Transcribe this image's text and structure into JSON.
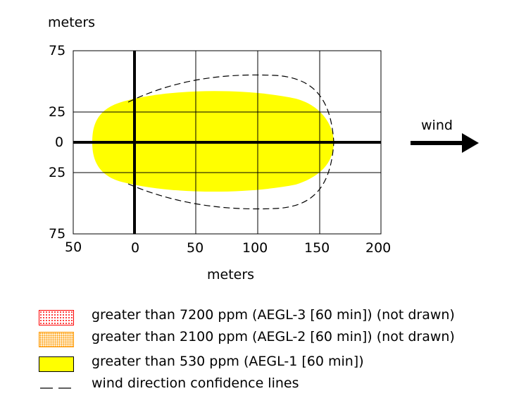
{
  "labels": {
    "top_unit": "meters",
    "bottom_unit": "meters",
    "wind": "wind"
  },
  "y_ticks": [
    "75",
    "25",
    "0",
    "25",
    "75"
  ],
  "x_ticks": [
    "50",
    "0",
    "50",
    "100",
    "150",
    "200"
  ],
  "legend": [
    {
      "text": "greater than 7200 ppm (AEGL-3 [60 min]) (not drawn)",
      "swatch": "red-dotted"
    },
    {
      "text": "greater than 2100 ppm (AEGL-2 [60 min]) (not drawn)",
      "swatch": "orange-dotted"
    },
    {
      "text": "greater than 530 ppm (AEGL-1 [60 min])",
      "swatch": "yellow-fill"
    },
    {
      "text": "wind direction confidence lines",
      "swatch": "dashed-line"
    }
  ],
  "colors": {
    "threat_zone": "#ffff00",
    "aegl3": "#ff0000",
    "aegl2": "#ff9900",
    "lines": "#000000"
  }
}
